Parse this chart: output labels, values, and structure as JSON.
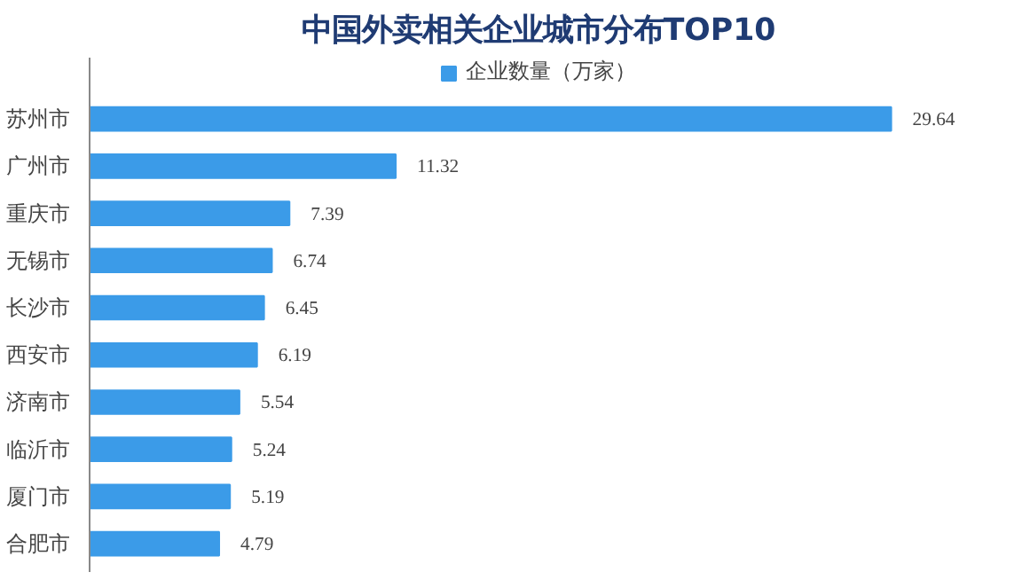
{
  "chart_data": {
    "type": "bar",
    "orientation": "horizontal",
    "title": "中国外卖相关企业城市分布TOP10",
    "categories": [
      "苏州市",
      "广州市",
      "重庆市",
      "无锡市",
      "长沙市",
      "西安市",
      "济南市",
      "临沂市",
      "厦门市",
      "合肥市"
    ],
    "series": [
      {
        "name": "企业数量（万家）",
        "color": "#3b9be8",
        "values": [
          29.64,
          11.32,
          7.39,
          6.74,
          6.45,
          6.19,
          5.54,
          5.24,
          5.19,
          4.79
        ]
      }
    ],
    "data_labels": true,
    "legend": "top",
    "grid": false
  }
}
